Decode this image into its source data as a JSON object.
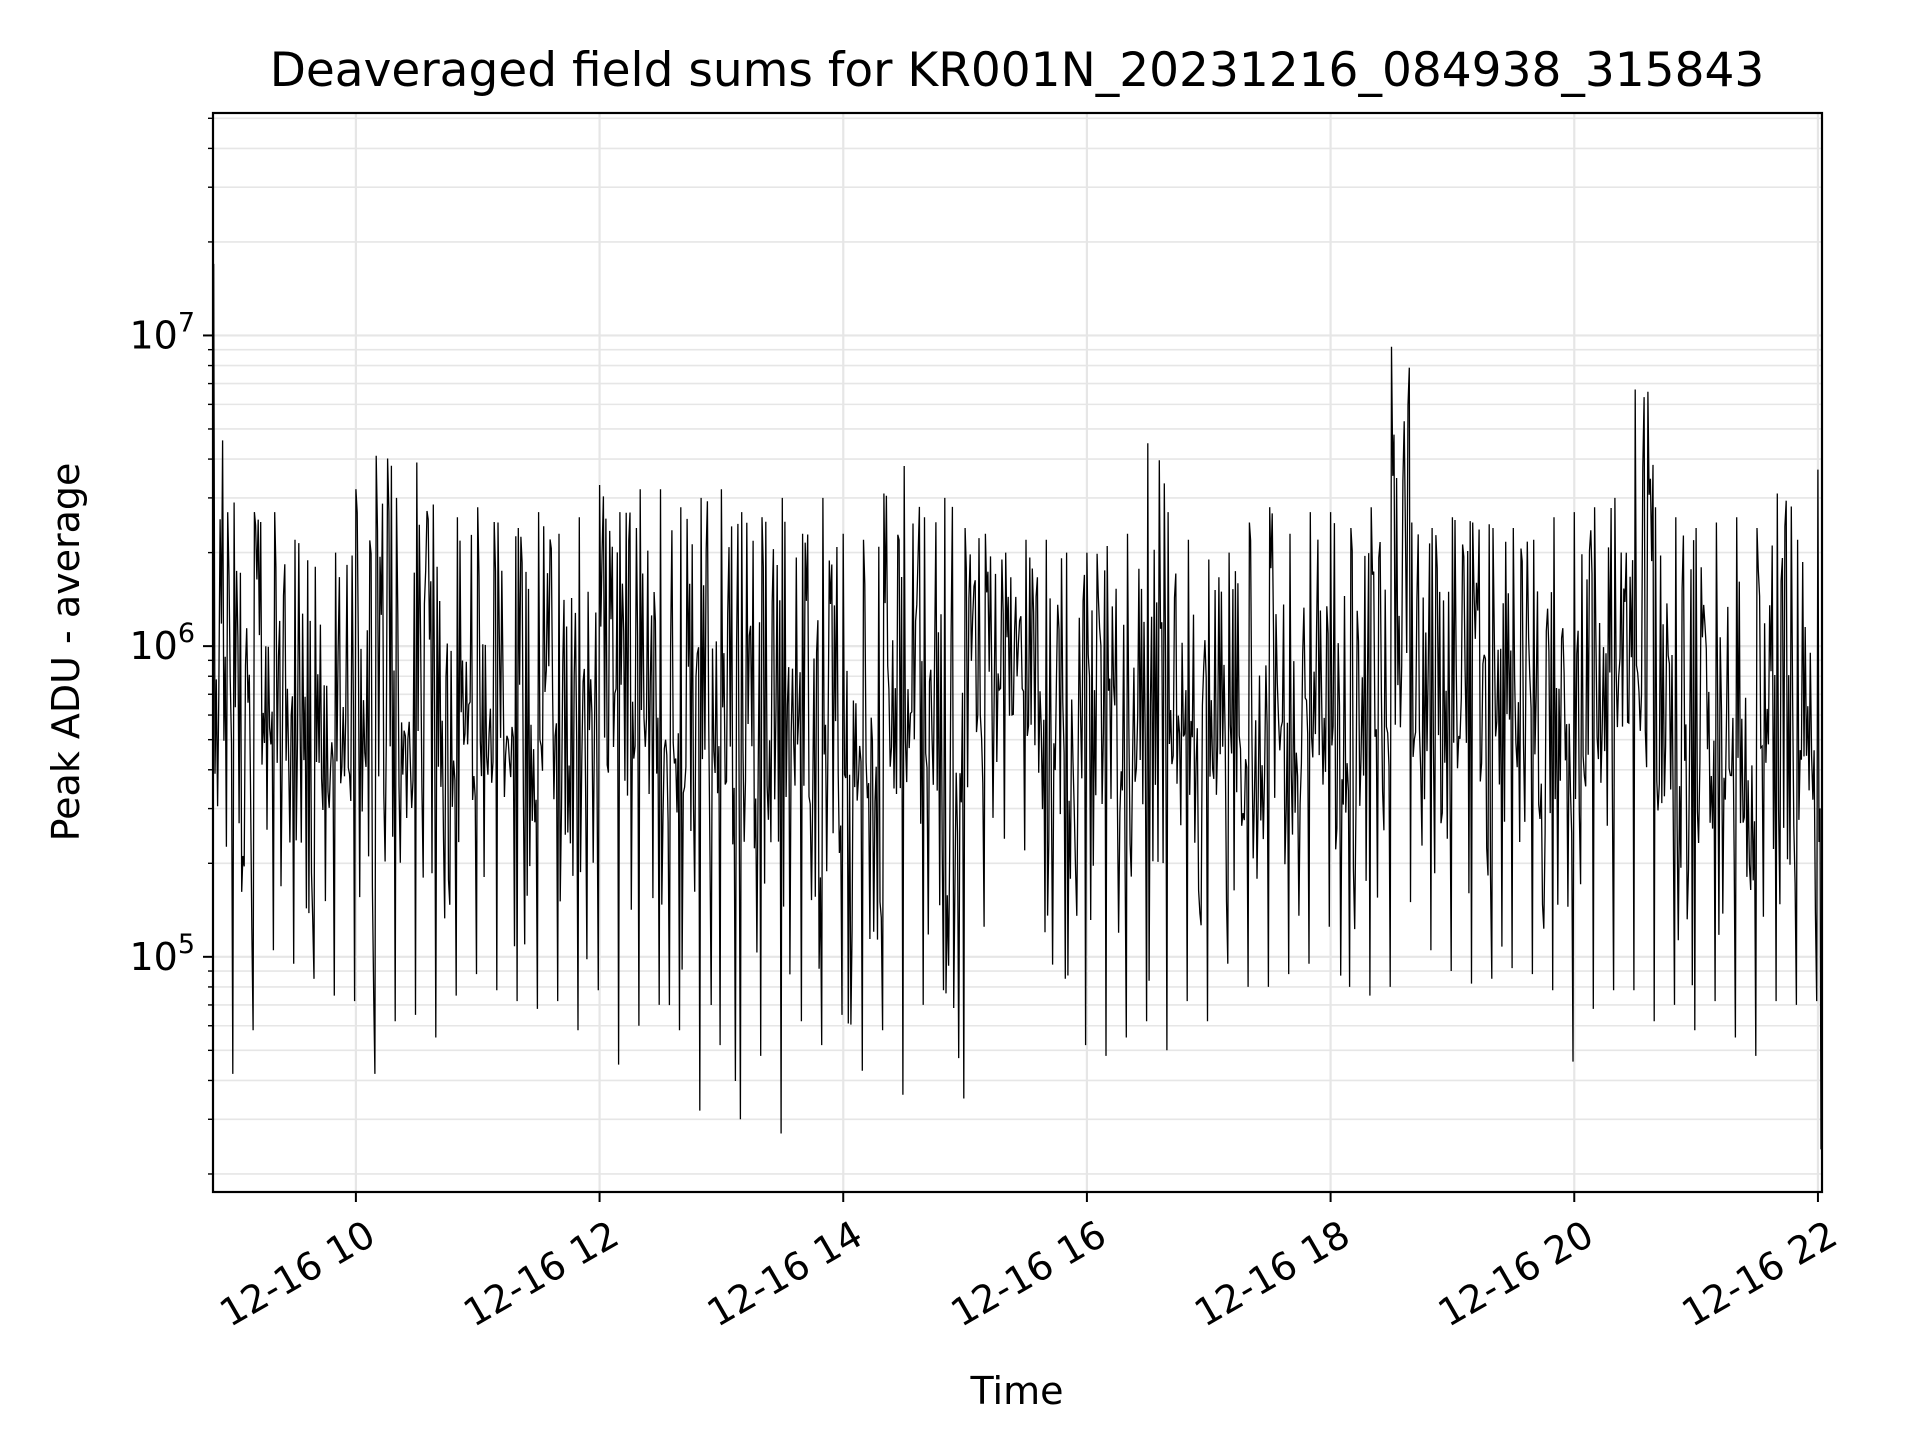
{
  "chart_data": {
    "type": "line",
    "title": "Deaveraged field sums for KR001N_20231216_084938_315843",
    "xlabel": "Time",
    "ylabel": "Peak ADU - average",
    "x_range": [
      "2023-12-16 08:49:38",
      "2023-12-16 22:02:00"
    ],
    "y_range": [
      17500,
      52000000
    ],
    "y_scale": "log",
    "grid": "on (major and minor)",
    "line_color": "#000000",
    "grid_color": "#e6e6e6",
    "x_ticks": [
      {
        "value": "2023-12-16 10:00",
        "label": "12-16 10"
      },
      {
        "value": "2023-12-16 12:00",
        "label": "12-16 12"
      },
      {
        "value": "2023-12-16 14:00",
        "label": "12-16 14"
      },
      {
        "value": "2023-12-16 16:00",
        "label": "12-16 16"
      },
      {
        "value": "2023-12-16 18:00",
        "label": "12-16 18"
      },
      {
        "value": "2023-12-16 20:00",
        "label": "12-16 20"
      },
      {
        "value": "2023-12-16 22:00",
        "label": "12-16 22"
      }
    ],
    "y_ticks": [
      {
        "value": 100000,
        "base": "10",
        "exp": "5"
      },
      {
        "value": 1000000,
        "base": "10",
        "exp": "6"
      },
      {
        "value": 10000000,
        "base": "10",
        "exp": "7"
      }
    ],
    "series": [
      {
        "x": [
          "2023-12-16 08:50",
          "2023-12-16 09:00",
          "2023-12-16 09:10",
          "2023-12-16 09:20",
          "2023-12-16 09:30",
          "2023-12-16 09:40",
          "2023-12-16 09:50",
          "2023-12-16 10:00",
          "2023-12-16 10:10",
          "2023-12-16 10:20",
          "2023-12-16 10:30",
          "2023-12-16 10:40",
          "2023-12-16 10:50",
          "2023-12-16 11:00",
          "2023-12-16 11:10",
          "2023-12-16 11:20",
          "2023-12-16 11:30",
          "2023-12-16 11:40",
          "2023-12-16 11:50",
          "2023-12-16 12:00",
          "2023-12-16 12:10",
          "2023-12-16 12:20",
          "2023-12-16 12:30",
          "2023-12-16 12:40",
          "2023-12-16 12:50",
          "2023-12-16 13:00",
          "2023-12-16 13:10",
          "2023-12-16 13:20",
          "2023-12-16 13:30",
          "2023-12-16 13:40",
          "2023-12-16 13:50",
          "2023-12-16 14:00",
          "2023-12-16 14:10",
          "2023-12-16 14:20",
          "2023-12-16 14:30",
          "2023-12-16 14:40",
          "2023-12-16 14:50",
          "2023-12-16 15:00",
          "2023-12-16 15:10",
          "2023-12-16 15:20",
          "2023-12-16 15:30",
          "2023-12-16 15:40",
          "2023-12-16 15:50",
          "2023-12-16 16:00",
          "2023-12-16 16:10",
          "2023-12-16 16:20",
          "2023-12-16 16:30",
          "2023-12-16 16:40",
          "2023-12-16 16:50",
          "2023-12-16 17:00",
          "2023-12-16 17:10",
          "2023-12-16 17:20",
          "2023-12-16 17:30",
          "2023-12-16 17:40",
          "2023-12-16 17:50",
          "2023-12-16 18:00",
          "2023-12-16 18:10",
          "2023-12-16 18:20",
          "2023-12-16 18:30",
          "2023-12-16 18:40",
          "2023-12-16 18:50",
          "2023-12-16 19:00",
          "2023-12-16 19:10",
          "2023-12-16 19:20",
          "2023-12-16 19:30",
          "2023-12-16 19:40",
          "2023-12-16 19:50",
          "2023-12-16 20:00",
          "2023-12-16 20:10",
          "2023-12-16 20:20",
          "2023-12-16 20:30",
          "2023-12-16 20:40",
          "2023-12-16 20:50",
          "2023-12-16 21:00",
          "2023-12-16 21:10",
          "2023-12-16 21:20",
          "2023-12-16 21:30",
          "2023-12-16 21:40",
          "2023-12-16 21:50",
          "2023-12-16 22:00"
        ],
        "min": [
          42000,
          58000,
          105000,
          95000,
          85000,
          75000,
          72000,
          42000,
          62000,
          65000,
          55000,
          75000,
          88000,
          78000,
          72000,
          68000,
          72000,
          58000,
          78000,
          45000,
          60000,
          70000,
          58000,
          32000,
          52000,
          30000,
          48000,
          27000,
          62000,
          52000,
          65000,
          43000,
          58000,
          36000,
          70000,
          78000,
          35000,
          125000,
          240000,
          220000,
          120000,
          85000,
          52000,
          48000,
          55000,
          62000,
          50000,
          72000,
          62000,
          95000,
          80000,
          80000,
          88000,
          95000,
          125000,
          80000,
          75000,
          80000,
          150000,
          105000,
          90000,
          82000,
          85000,
          92000,
          88000,
          78000,
          46000,
          68000,
          78000,
          78000,
          62000,
          70000,
          58000,
          72000,
          55000,
          48000,
          72000,
          70000,
          72000,
          24000
        ],
        "max": [
          17000000,
          2900000,
          2700000,
          2700000,
          2200000,
          1800000,
          2000000,
          3200000,
          4100000,
          3000000,
          3900000,
          1800000,
          2600000,
          2800000,
          2500000,
          2400000,
          2700000,
          2300000,
          2600000,
          3300000,
          2700000,
          3200000,
          3200000,
          2800000,
          3000000,
          3200000,
          2700000,
          2600000,
          3000000,
          2300000,
          3000000,
          2300000,
          2200000,
          3100000,
          3800000,
          2600000,
          3000000,
          2400000,
          2300000,
          2000000,
          2200000,
          2200000,
          2000000,
          2000000,
          2100000,
          2300000,
          4500000,
          2700000,
          2200000,
          1900000,
          2000000,
          2500000,
          2800000,
          2300000,
          2700000,
          2700000,
          2400000,
          2800000,
          9200000,
          2500000,
          2400000,
          2600000,
          2500000,
          2400000,
          2400000,
          2200000,
          2600000,
          2700000,
          2800000,
          3000000,
          6700000,
          2800000,
          2600000,
          2400000,
          2500000,
          2600000,
          2400000,
          3100000,
          2200000,
          3700000
        ]
      }
    ]
  }
}
